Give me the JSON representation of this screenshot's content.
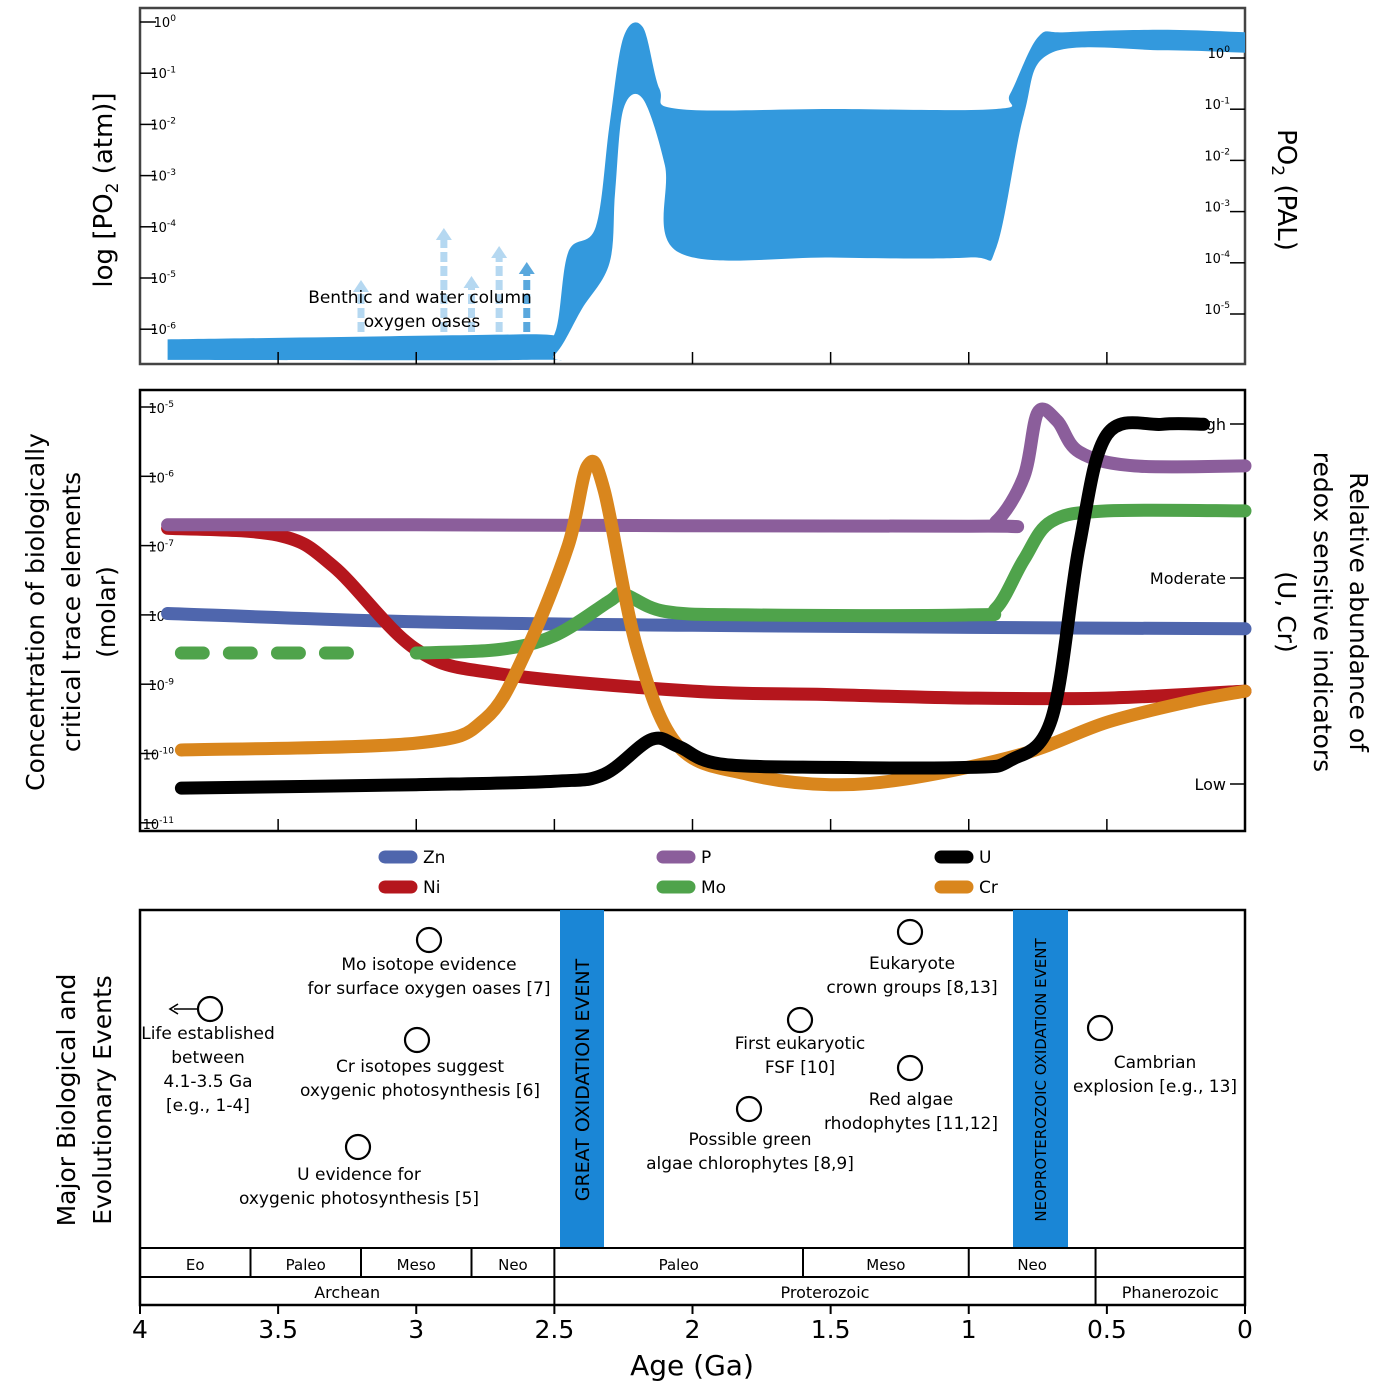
{
  "chart_data": [
    {
      "type": "area",
      "ylabel_left": "log [PO2 (atm)]",
      "ylabel_right": "PO2 (PAL)",
      "yticks_left": [
        "10^0",
        "10^-1",
        "10^-2",
        "10^-3",
        "10^-4",
        "10^-5",
        "10^-6"
      ],
      "yticks_right": [
        "10^0",
        "10^-1",
        "10^-2",
        "10^-3",
        "10^-4",
        "10^-5"
      ],
      "annotation": [
        "Benthic and water column",
        "oxygen oases"
      ],
      "fill_color": "#3399dd",
      "arrows_x_ga": [
        3.2,
        2.9,
        2.8,
        2.7,
        2.6
      ],
      "band_upper_log_atm": [
        [
          3.9,
          -6.2
        ],
        [
          2.6,
          -6.1
        ],
        [
          2.5,
          -6.1
        ],
        [
          2.45,
          -4.5
        ],
        [
          2.35,
          -4.0
        ],
        [
          2.3,
          -2.0
        ],
        [
          2.25,
          -0.3
        ],
        [
          2.18,
          -0.1
        ],
        [
          2.12,
          -1.3
        ],
        [
          2.05,
          -1.7
        ],
        [
          1.5,
          -1.7
        ],
        [
          0.9,
          -1.7
        ],
        [
          0.85,
          -1.4
        ],
        [
          0.75,
          -0.3
        ],
        [
          0.65,
          -0.2
        ],
        [
          0.3,
          -0.15
        ],
        [
          0.0,
          -0.2
        ]
      ],
      "band_lower_log_atm": [
        [
          3.9,
          -6.6
        ],
        [
          2.6,
          -6.6
        ],
        [
          2.5,
          -6.5
        ],
        [
          2.4,
          -5.6
        ],
        [
          2.3,
          -4.7
        ],
        [
          2.28,
          -3.3
        ],
        [
          2.25,
          -1.7
        ],
        [
          2.18,
          -1.5
        ],
        [
          2.1,
          -2.8
        ],
        [
          2.05,
          -4.5
        ],
        [
          1.5,
          -4.6
        ],
        [
          1.0,
          -4.6
        ],
        [
          0.9,
          -4.4
        ],
        [
          0.8,
          -1.8
        ],
        [
          0.7,
          -0.6
        ],
        [
          0.3,
          -0.55
        ],
        [
          0.0,
          -0.6
        ]
      ]
    },
    {
      "type": "line",
      "ylabel_left": "Concentration of biologically critical trace elements (molar)",
      "ylabel_right": "Relative abundance of redox sensitive indicators (U, Cr)",
      "yticks_left": [
        "10^-5",
        "10^-6",
        "10^-7",
        "10^-8",
        "10^-9",
        "10^-10",
        "10^-11"
      ],
      "yticks_right": [
        "High",
        "Moderate",
        "Low"
      ],
      "series": [
        {
          "name": "Zn",
          "color": "#4f66ad",
          "points": [
            [
              3.9,
              -7.98
            ],
            [
              3.0,
              -8.1
            ],
            [
              2.0,
              -8.15
            ],
            [
              1.0,
              -8.18
            ],
            [
              0.0,
              -8.2
            ]
          ]
        },
        {
          "name": "P",
          "color": "#8b5e9b",
          "points": [
            [
              3.9,
              -6.7
            ],
            [
              3.0,
              -6.7
            ],
            [
              1.0,
              -6.72
            ],
            [
              0.9,
              -6.65
            ],
            [
              0.8,
              -6.0
            ],
            [
              0.75,
              -5.08
            ],
            [
              0.68,
              -5.2
            ],
            [
              0.6,
              -5.65
            ],
            [
              0.4,
              -5.85
            ],
            [
              0.0,
              -5.85
            ]
          ]
        },
        {
          "name": "Ni",
          "color": "#b5161d",
          "points": [
            [
              3.9,
              -6.75
            ],
            [
              3.5,
              -6.85
            ],
            [
              3.3,
              -7.3
            ],
            [
              3.0,
              -8.5
            ],
            [
              2.7,
              -8.85
            ],
            [
              2.0,
              -9.1
            ],
            [
              1.5,
              -9.15
            ],
            [
              1.0,
              -9.2
            ],
            [
              0.5,
              -9.2
            ],
            [
              0.0,
              -9.1
            ]
          ]
        },
        {
          "name": "Mo",
          "color": "#4fa34b",
          "points": [
            [
              3.0,
              -8.55
            ],
            [
              2.7,
              -8.5
            ],
            [
              2.5,
              -8.3
            ],
            [
              2.3,
              -7.8
            ],
            [
              2.25,
              -7.7
            ],
            [
              2.1,
              -7.95
            ],
            [
              1.8,
              -8.0
            ],
            [
              1.0,
              -8.0
            ],
            [
              0.9,
              -7.9
            ],
            [
              0.8,
              -7.2
            ],
            [
              0.7,
              -6.65
            ],
            [
              0.5,
              -6.5
            ],
            [
              0.0,
              -6.5
            ]
          ]
        },
        {
          "name": "Mo (dashed)",
          "color": "#4fa34b",
          "dashed": true,
          "points": [
            [
              3.85,
              -8.55
            ],
            [
              3.2,
              -8.55
            ]
          ]
        },
        {
          "name": "U",
          "color": "#000000",
          "points": [
            [
              3.85,
              -10.5
            ],
            [
              3.0,
              -10.45
            ],
            [
              2.5,
              -10.4
            ],
            [
              2.32,
              -10.3
            ],
            [
              2.15,
              -9.8
            ],
            [
              2.05,
              -9.9
            ],
            [
              1.9,
              -10.15
            ],
            [
              1.5,
              -10.2
            ],
            [
              1.0,
              -10.2
            ],
            [
              0.85,
              -10.1
            ],
            [
              0.7,
              -9.5
            ],
            [
              0.6,
              -7.0
            ],
            [
              0.5,
              -5.4
            ],
            [
              0.3,
              -5.25
            ],
            [
              0.15,
              -5.25
            ]
          ]
        },
        {
          "name": "Cr",
          "color": "#d9861d",
          "points": [
            [
              3.85,
              -9.95
            ],
            [
              3.0,
              -9.85
            ],
            [
              2.75,
              -9.5
            ],
            [
              2.6,
              -8.5
            ],
            [
              2.45,
              -7.0
            ],
            [
              2.38,
              -5.85
            ],
            [
              2.32,
              -6.2
            ],
            [
              2.2,
              -8.5
            ],
            [
              2.05,
              -9.9
            ],
            [
              1.8,
              -10.3
            ],
            [
              1.5,
              -10.45
            ],
            [
              1.2,
              -10.35
            ],
            [
              0.8,
              -10.0
            ],
            [
              0.5,
              -9.55
            ],
            [
              0.2,
              -9.25
            ],
            [
              0.0,
              -9.1
            ]
          ]
        }
      ],
      "legend": [
        "Zn",
        "P",
        "U",
        "Ni",
        "Mo",
        "Cr"
      ]
    }
  ],
  "events_panel": {
    "ylabel": [
      "Major Biological and",
      "Evolutionary Events"
    ],
    "oxidation_events": [
      "GREAT OXIDATION EVENT",
      "NEOPROTEROZOIC OXIDATION EVENT"
    ],
    "events": [
      {
        "id": "life",
        "lines": [
          "Life established",
          "between",
          "4.1-3.5 Ga",
          "[e.g., 1-4]"
        ],
        "age_ga": 3.75
      },
      {
        "id": "mo",
        "lines": [
          "Mo isotope evidence",
          "for surface oxygen oases [7]"
        ],
        "age_ga": 2.95
      },
      {
        "id": "cr",
        "lines": [
          "Cr isotopes suggest",
          "oxygenic photosynthesis [6]"
        ],
        "age_ga": 3.0
      },
      {
        "id": "u",
        "lines": [
          "U evidence for",
          "oxygenic photosynthesis [5]"
        ],
        "age_ga": 3.22
      },
      {
        "id": "green",
        "lines": [
          "Possible green",
          "algae chlorophytes [8,9]"
        ],
        "age_ga": 1.8
      },
      {
        "id": "fsf",
        "lines": [
          "First eukaryotic",
          "FSF [10]"
        ],
        "age_ga": 1.62
      },
      {
        "id": "euk",
        "lines": [
          "Eukaryote",
          "crown groups [8,13]"
        ],
        "age_ga": 1.22
      },
      {
        "id": "red",
        "lines": [
          "Red algae",
          "rhodophytes [11,12]"
        ],
        "age_ga": 1.22
      },
      {
        "id": "cambrian",
        "lines": [
          "Cambrian",
          "explosion [e.g., 13]"
        ],
        "age_ga": 0.54
      }
    ]
  },
  "timescale": {
    "eras": [
      "Eo",
      "Paleo",
      "Meso",
      "Neo",
      "Paleo",
      "Meso",
      "Neo",
      ""
    ],
    "eons": [
      "Archean",
      "Proterozoic",
      "Phanerozoic"
    ]
  },
  "xaxis": {
    "label": "Age (Ga)",
    "ticks": [
      "4",
      "3.5",
      "3",
      "2.5",
      "2",
      "1.5",
      "1",
      "0.5",
      "0"
    ]
  }
}
